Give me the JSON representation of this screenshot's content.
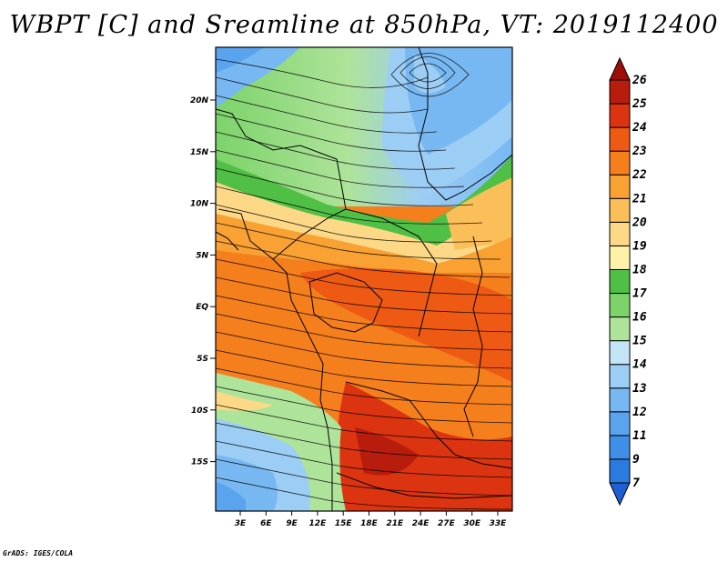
{
  "title": "WBPT [C] and Sreamline at 850hPa, VT: 2019112400",
  "footer": "GrADS: IGES/COLA",
  "lat_labels": [
    "20N",
    "15N",
    "10N",
    "5N",
    "EQ",
    "5S",
    "10S",
    "15S"
  ],
  "lon_labels": [
    "3E",
    "6E",
    "9E",
    "12E",
    "15E",
    "18E",
    "21E",
    "24E",
    "27E",
    "30E",
    "33E"
  ],
  "colorbar": {
    "labels": [
      "7",
      "9",
      "11",
      "12",
      "13",
      "14",
      "15",
      "16",
      "17",
      "18",
      "19",
      "20",
      "21",
      "22",
      "23",
      "24",
      "25",
      "26"
    ],
    "colors": [
      "#1f5fd6",
      "#2b7ae0",
      "#3f8fe8",
      "#5aa3ee",
      "#78b8f2",
      "#9ccdf5",
      "#c4e4f7",
      "#aee39a",
      "#7cd36a",
      "#4fbf45",
      "#fff2a8",
      "#fdd987",
      "#fbbf5a",
      "#f9a133",
      "#f57e1d",
      "#ee5a14",
      "#dc3410",
      "#b81c0c",
      "#9e0e08"
    ]
  }
}
